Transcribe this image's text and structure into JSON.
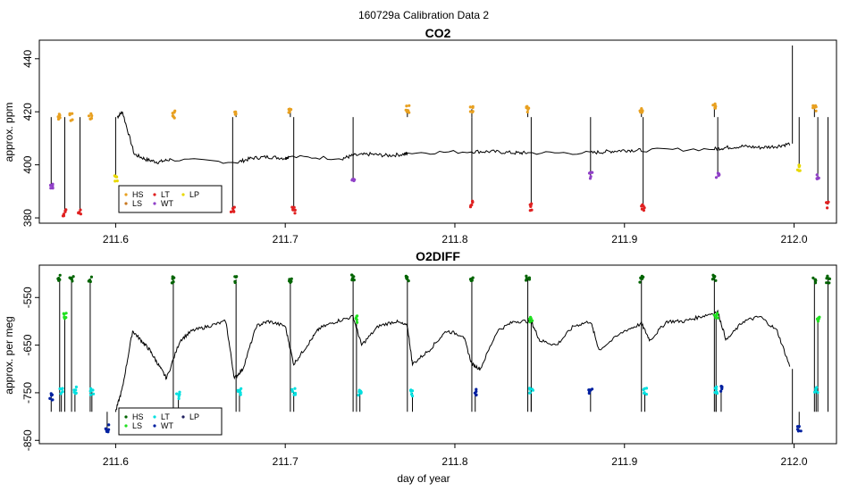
{
  "page_title": "160729a   Calibration Data 2",
  "chart_data": [
    {
      "type": "line",
      "title": "CO2",
      "ylabel": "approx. ppm",
      "xlabel": "",
      "xlim": [
        211.555,
        212.025
      ],
      "ylim": [
        378,
        447
      ],
      "xticks": [
        211.6,
        211.7,
        211.8,
        211.9,
        212.0
      ],
      "xtick_labels": [
        "211.6",
        "211.7",
        "211.8",
        "211.9",
        "212.0"
      ],
      "yticks": [
        380,
        400,
        420,
        440
      ],
      "ytick_labels": [
        "380",
        "400",
        "420",
        "440"
      ],
      "baseline_series": {
        "name": "ambient",
        "color": "#000000",
        "x": [
          211.601,
          211.604,
          211.611,
          211.618,
          211.625,
          211.632,
          211.672,
          211.68,
          211.69,
          211.7,
          211.702,
          211.734,
          211.74,
          211.75,
          211.76,
          211.77,
          211.772,
          211.81,
          211.822,
          211.835,
          211.843,
          211.88,
          211.89,
          211.9,
          211.91,
          211.953,
          211.96,
          211.97,
          211.98,
          211.99,
          211.998
        ],
        "y": [
          418,
          420,
          404,
          402,
          401,
          402,
          401,
          402.5,
          403,
          402.5,
          403,
          402.5,
          403.5,
          404,
          403.5,
          404,
          404.5,
          405,
          405,
          404.5,
          404.5,
          404.5,
          405,
          405.5,
          405.5,
          406,
          406.5,
          407,
          406.5,
          407,
          408
        ]
      },
      "calibration_cycles": [
        {
          "x": 211.562,
          "y": 392,
          "tank": "WT"
        },
        {
          "x": 211.567,
          "y": 418,
          "tank": "HS"
        },
        {
          "x": 211.57,
          "y": 382,
          "tank": "LT"
        },
        {
          "x": 211.574,
          "y": 418,
          "tank": "HS"
        },
        {
          "x": 211.579,
          "y": 382,
          "tank": "LT"
        },
        {
          "x": 211.585,
          "y": 418,
          "tank": "HS"
        },
        {
          "x": 211.6,
          "y": 395,
          "tank": "LP"
        },
        {
          "x": 211.634,
          "y": 419,
          "tank": "HS"
        },
        {
          "x": 211.669,
          "y": 383,
          "tank": "LT"
        },
        {
          "x": 211.671,
          "y": 419,
          "tank": "HS"
        },
        {
          "x": 211.703,
          "y": 420,
          "tank": "HS"
        },
        {
          "x": 211.705,
          "y": 383,
          "tank": "LT"
        },
        {
          "x": 211.74,
          "y": 395,
          "tank": "WT"
        },
        {
          "x": 211.772,
          "y": 421,
          "tank": "HS"
        },
        {
          "x": 211.81,
          "y": 421,
          "tank": "HS"
        },
        {
          "x": 211.81,
          "y": 385,
          "tank": "LT"
        },
        {
          "x": 211.843,
          "y": 421,
          "tank": "HS"
        },
        {
          "x": 211.845,
          "y": 384,
          "tank": "LT"
        },
        {
          "x": 211.88,
          "y": 396,
          "tank": "WT"
        },
        {
          "x": 211.91,
          "y": 421,
          "tank": "HS"
        },
        {
          "x": 211.911,
          "y": 384,
          "tank": "LT"
        },
        {
          "x": 211.953,
          "y": 422,
          "tank": "HS"
        },
        {
          "x": 211.955,
          "y": 396,
          "tank": "WT"
        },
        {
          "x": 212.003,
          "y": 399,
          "tank": "LP"
        },
        {
          "x": 212.012,
          "y": 421,
          "tank": "HS"
        },
        {
          "x": 212.014,
          "y": 395,
          "tank": "WT"
        },
        {
          "x": 212.02,
          "y": 385,
          "tank": "LT"
        }
      ],
      "spike": {
        "x": 211.999,
        "y": 445
      },
      "legend": {
        "placement": "bottom-left",
        "entries": [
          {
            "label": "HS",
            "color": "#e8a020"
          },
          {
            "label": "LT",
            "color": "#e02020"
          },
          {
            "label": "LP",
            "color": "#e8d800"
          },
          {
            "label": "LS",
            "color": "#c87820"
          },
          {
            "label": "WT",
            "color": "#9040c8"
          }
        ]
      }
    },
    {
      "type": "line",
      "title": "O2DIFF",
      "ylabel": "approx. per meg",
      "xlabel": "day of year",
      "xlim": [
        211.555,
        212.025
      ],
      "ylim": [
        -857,
        -482
      ],
      "xticks": [
        211.6,
        211.7,
        211.8,
        211.9,
        212.0
      ],
      "xtick_labels": [
        "211.6",
        "211.7",
        "211.8",
        "211.9",
        "212.0"
      ],
      "yticks": [
        -850,
        -750,
        -650,
        -550
      ],
      "ytick_labels": [
        "-850",
        "-750",
        "-650",
        "-550"
      ],
      "baseline_series": {
        "name": "ambient",
        "color": "#000000",
        "x": [
          211.6,
          211.604,
          211.61,
          211.615,
          211.62,
          211.625,
          211.63,
          211.638,
          211.645,
          211.655,
          211.665,
          211.67,
          211.675,
          211.683,
          211.69,
          211.7,
          211.705,
          211.713,
          211.72,
          211.73,
          211.74,
          211.745,
          211.755,
          211.765,
          211.772,
          211.775,
          211.785,
          211.795,
          211.805,
          211.81,
          211.815,
          211.825,
          211.835,
          211.845,
          211.85,
          211.86,
          211.87,
          211.88,
          211.885,
          211.9,
          211.91,
          211.915,
          211.925,
          211.935,
          211.945,
          211.955,
          211.96,
          211.97,
          211.98,
          211.99,
          211.998
        ],
        "y": [
          -790,
          -740,
          -620,
          -640,
          -660,
          -690,
          -720,
          -640,
          -620,
          -610,
          -600,
          -720,
          -700,
          -610,
          -600,
          -610,
          -690,
          -650,
          -615,
          -600,
          -590,
          -650,
          -610,
          -600,
          -610,
          -690,
          -660,
          -620,
          -630,
          -690,
          -700,
          -620,
          -600,
          -600,
          -640,
          -650,
          -610,
          -600,
          -660,
          -620,
          -605,
          -640,
          -600,
          -600,
          -590,
          -580,
          -640,
          -600,
          -590,
          -620,
          -700
        ]
      },
      "calibration_cycles": [
        {
          "x": 211.562,
          "y": -758,
          "tank": "WT"
        },
        {
          "x": 211.567,
          "y": -510,
          "tank": "HS"
        },
        {
          "x": 211.57,
          "y": -590,
          "tank": "LS"
        },
        {
          "x": 211.568,
          "y": -748,
          "tank": "LT"
        },
        {
          "x": 211.574,
          "y": -510,
          "tank": "HS"
        },
        {
          "x": 211.576,
          "y": -745,
          "tank": "LT"
        },
        {
          "x": 211.585,
          "y": -510,
          "tank": "HS"
        },
        {
          "x": 211.586,
          "y": -748,
          "tank": "LT"
        },
        {
          "x": 211.595,
          "y": -825,
          "tank": "WT"
        },
        {
          "x": 211.634,
          "y": -513,
          "tank": "HS"
        },
        {
          "x": 211.637,
          "y": -755,
          "tank": "LT"
        },
        {
          "x": 211.671,
          "y": -512,
          "tank": "HS"
        },
        {
          "x": 211.673,
          "y": -748,
          "tank": "LT"
        },
        {
          "x": 211.703,
          "y": -513,
          "tank": "HS"
        },
        {
          "x": 211.705,
          "y": -748,
          "tank": "LT"
        },
        {
          "x": 211.74,
          "y": -510,
          "tank": "HS"
        },
        {
          "x": 211.742,
          "y": -595,
          "tank": "LS"
        },
        {
          "x": 211.744,
          "y": -748,
          "tank": "LT"
        },
        {
          "x": 211.772,
          "y": -512,
          "tank": "HS"
        },
        {
          "x": 211.775,
          "y": -750,
          "tank": "LT"
        },
        {
          "x": 211.81,
          "y": -510,
          "tank": "HS"
        },
        {
          "x": 211.812,
          "y": -750,
          "tank": "WT"
        },
        {
          "x": 211.845,
          "y": -595,
          "tank": "LS"
        },
        {
          "x": 211.843,
          "y": -510,
          "tank": "HS"
        },
        {
          "x": 211.845,
          "y": -748,
          "tank": "LT"
        },
        {
          "x": 211.88,
          "y": -745,
          "tank": "WT"
        },
        {
          "x": 211.91,
          "y": -512,
          "tank": "HS"
        },
        {
          "x": 211.912,
          "y": -748,
          "tank": "LT"
        },
        {
          "x": 211.953,
          "y": -510,
          "tank": "HS"
        },
        {
          "x": 211.954,
          "y": -590,
          "tank": "LS"
        },
        {
          "x": 211.954,
          "y": -745,
          "tank": "LT"
        },
        {
          "x": 211.957,
          "y": -742,
          "tank": "WT"
        },
        {
          "x": 212.003,
          "y": -825,
          "tank": "WT"
        },
        {
          "x": 212.012,
          "y": -512,
          "tank": "HS"
        },
        {
          "x": 212.014,
          "y": -595,
          "tank": "LS"
        },
        {
          "x": 212.013,
          "y": -745,
          "tank": "LT"
        },
        {
          "x": 212.02,
          "y": -512,
          "tank": "HS"
        }
      ],
      "spike": {
        "x": 211.999,
        "y": -857
      },
      "legend": {
        "placement": "bottom-left",
        "entries": [
          {
            "label": "HS",
            "color": "#006400"
          },
          {
            "label": "LT",
            "color": "#00e0e0"
          },
          {
            "label": "LP",
            "color": "#202060"
          },
          {
            "label": "LS",
            "color": "#20e020"
          },
          {
            "label": "WT",
            "color": "#0020a0"
          }
        ]
      }
    }
  ]
}
